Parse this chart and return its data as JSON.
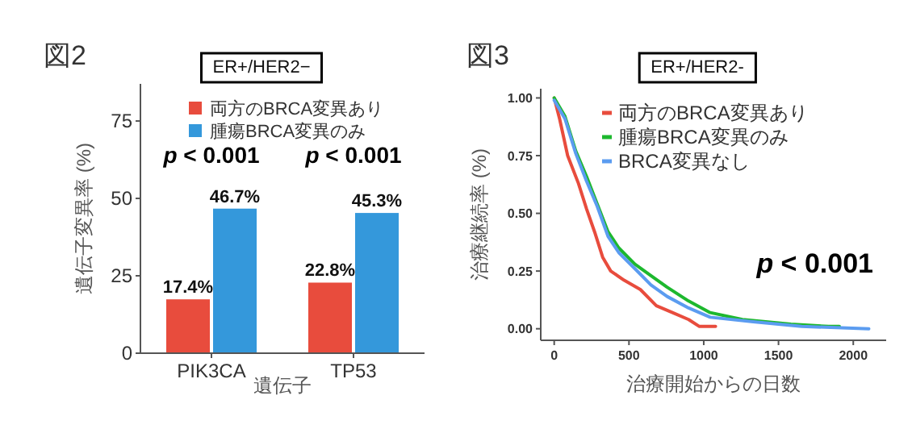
{
  "chart_data": [
    {
      "type": "bar",
      "title": "図2",
      "subtitle": "ER+/HER2−",
      "xlabel": "遺伝子",
      "ylabel": "遺伝子変異率 (%)",
      "categories": [
        "PIK3CA",
        "TP53"
      ],
      "series": [
        {
          "name": "両方のBRCA変異あり",
          "color": "#e84c3d",
          "values": [
            17.4,
            22.8
          ],
          "value_labels": [
            "17.4%",
            "22.8%"
          ]
        },
        {
          "name": "腫瘍BRCA変異のみ",
          "color": "#3498db",
          "values": [
            46.7,
            45.3
          ],
          "value_labels": [
            "46.7%",
            "45.3%"
          ]
        }
      ],
      "ylim": [
        0,
        87
      ],
      "yticks": [
        0,
        25,
        50,
        75
      ],
      "legend": "top right",
      "grid": false,
      "annotations": [
        "*p* < 0.001",
        "*p* < 0.001"
      ]
    },
    {
      "type": "line",
      "title": "図3",
      "subtitle": "ER+/HER2-",
      "xlabel": "治療開始からの日数",
      "ylabel": "治療継続率 (%)",
      "series": [
        {
          "name": "両方のBRCA変異あり",
          "color": "#e84c3d",
          "x": [
            0,
            36,
            90,
            162,
            216,
            270,
            324,
            378,
            468,
            576,
            683,
            791,
            899,
            971,
            1079
          ],
          "values": [
            1.0,
            0.91,
            0.75,
            0.63,
            0.52,
            0.42,
            0.31,
            0.25,
            0.21,
            0.17,
            0.1,
            0.07,
            0.04,
            0.01,
            0.01
          ]
        },
        {
          "name": "腫瘍BRCA変異のみ",
          "color": "#1db82e",
          "x": [
            0,
            72,
            144,
            216,
            288,
            360,
            432,
            540,
            647,
            755,
            899,
            1043,
            1259,
            1583,
            1835,
            1907
          ],
          "values": [
            1.0,
            0.92,
            0.77,
            0.66,
            0.54,
            0.42,
            0.35,
            0.28,
            0.23,
            0.18,
            0.12,
            0.07,
            0.04,
            0.02,
            0.01,
            0.01
          ]
        },
        {
          "name": "BRCA変異なし",
          "color": "#5b9cf0",
          "x": [
            0,
            72,
            144,
            216,
            288,
            360,
            432,
            540,
            647,
            755,
            899,
            1043,
            1331,
            1655,
            2104
          ],
          "values": [
            0.99,
            0.91,
            0.76,
            0.64,
            0.53,
            0.4,
            0.33,
            0.26,
            0.19,
            0.14,
            0.09,
            0.05,
            0.03,
            0.01,
            0.0
          ]
        }
      ],
      "xlim": [
        -90,
        2220
      ],
      "xticks": [
        0,
        500,
        1000,
        1500,
        2000
      ],
      "ylim": [
        -0.05,
        1.04
      ],
      "yticks": [
        {
          "value": 0,
          "label": "0.00"
        },
        {
          "value": 0.25,
          "label": "0.25"
        },
        {
          "value": 0.5,
          "label": "0.50"
        },
        {
          "value": 0.75,
          "label": "0.75"
        },
        {
          "value": 1,
          "label": "1.00"
        }
      ],
      "legend": "top right",
      "grid": false,
      "marker": "none",
      "line_style": "solid",
      "annotations": [
        "*p* < 0.001"
      ]
    }
  ]
}
